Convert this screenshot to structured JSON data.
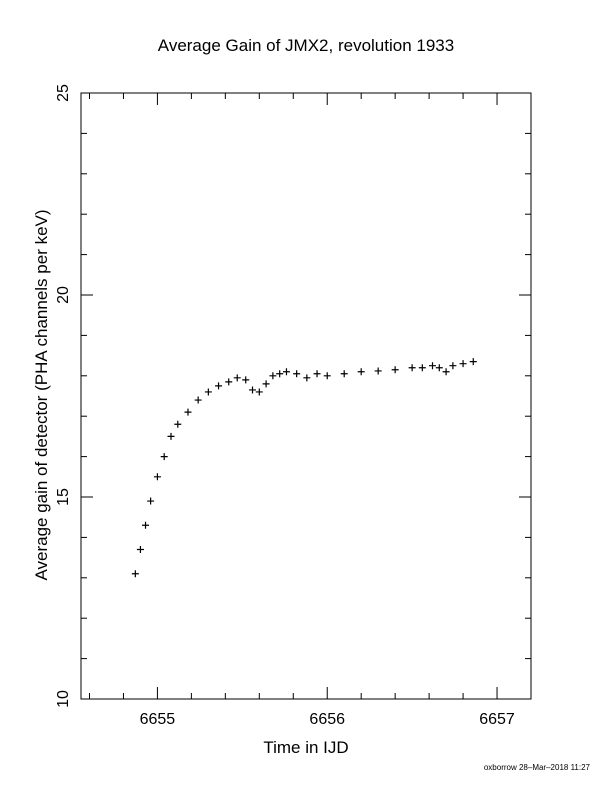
{
  "chart_data": {
    "type": "scatter",
    "title": "Average Gain of JMX2, revolution 1933",
    "xlabel": "Time in IJD",
    "ylabel": "Average gain of detector (PHA channels per keV)",
    "xlim": [
      6654.55,
      6657.2
    ],
    "ylim": [
      10,
      25
    ],
    "xticks": [
      6655,
      6656,
      6657
    ],
    "yticks": [
      10,
      15,
      20,
      25
    ],
    "marker": "plus",
    "grid": false,
    "series": [
      {
        "x": [
          6654.87,
          6654.9,
          6654.93,
          6654.96,
          6655.0,
          6655.04,
          6655.08,
          6655.12,
          6655.18,
          6655.24,
          6655.3,
          6655.36,
          6655.42,
          6655.47,
          6655.52,
          6655.56,
          6655.6,
          6655.64,
          6655.68,
          6655.72,
          6655.76,
          6655.82,
          6655.88,
          6655.94,
          6656.0,
          6656.1,
          6656.2,
          6656.3,
          6656.4,
          6656.5,
          6656.56,
          6656.62,
          6656.66,
          6656.7,
          6656.74,
          6656.8,
          6656.86
        ],
        "y": [
          13.1,
          13.7,
          14.3,
          14.9,
          15.5,
          16.0,
          16.5,
          16.8,
          17.1,
          17.4,
          17.6,
          17.75,
          17.85,
          17.95,
          17.9,
          17.65,
          17.6,
          17.8,
          18.0,
          18.05,
          18.1,
          18.05,
          17.95,
          18.05,
          18.0,
          18.05,
          18.1,
          18.12,
          18.15,
          18.2,
          18.2,
          18.25,
          18.2,
          18.1,
          18.25,
          18.3,
          18.35
        ]
      }
    ]
  },
  "footer": "oxborrow 28–Mar–2018 11:27"
}
